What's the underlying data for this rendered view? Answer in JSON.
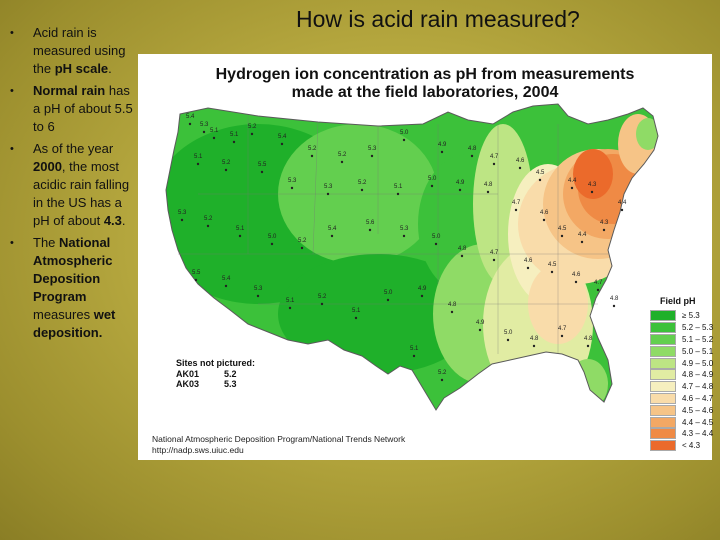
{
  "slide": {
    "title": "How is acid rain measured?",
    "bullets": [
      {
        "parts": [
          {
            "t": "Acid rain is measured using the ",
            "b": false
          },
          {
            "t": "pH scale",
            "b": true
          },
          {
            "t": ".",
            "b": false
          }
        ]
      },
      {
        "parts": [
          {
            "t": "Normal rain",
            "b": true
          },
          {
            "t": " has a pH of about 5.5 to 6",
            "b": false
          }
        ]
      },
      {
        "parts": [
          {
            "t": "As of the year ",
            "b": false
          },
          {
            "t": "2000",
            "b": true
          },
          {
            "t": ", the most acidic rain falling in the US has a pH of about ",
            "b": false
          },
          {
            "t": "4.3",
            "b": true
          },
          {
            "t": ".",
            "b": false
          }
        ]
      },
      {
        "parts": [
          {
            "t": "The ",
            "b": false
          },
          {
            "t": "National Atmospheric Deposition Program",
            "b": true
          },
          {
            "t": " measures ",
            "b": false
          },
          {
            "t": "wet deposition.",
            "b": true
          }
        ]
      }
    ]
  },
  "map": {
    "title_line1": "Hydrogen ion concentration as pH from measurements",
    "title_line2": "made at the field laboratories, 2004",
    "legend_title": "Field pH",
    "legend": [
      {
        "label": "≥ 5.3",
        "color": "#1fb02a"
      },
      {
        "label": "5.2 – 5.3",
        "color": "#3cc13a"
      },
      {
        "label": "5.1 – 5.2",
        "color": "#63cf4f"
      },
      {
        "label": "5.0 – 5.1",
        "color": "#8fdb66"
      },
      {
        "label": "4.9 – 5.0",
        "color": "#bde584"
      },
      {
        "label": "4.8 – 4.9",
        "color": "#e1eca3"
      },
      {
        "label": "4.7 – 4.8",
        "color": "#f6efbf"
      },
      {
        "label": "4.6 – 4.7",
        "color": "#f9dcaa"
      },
      {
        "label": "4.5 – 4.6",
        "color": "#f6c487"
      },
      {
        "label": "4.4 – 4.5",
        "color": "#f3a864"
      },
      {
        "label": "4.3 – 4.4",
        "color": "#ef8a45"
      },
      {
        "label": "< 4.3",
        "color": "#eb6a2b"
      }
    ],
    "sites_note": "Sites not pictured:",
    "sites": [
      {
        "id": "AK01",
        "value": "5.2"
      },
      {
        "id": "AK03",
        "value": "5.3"
      }
    ],
    "credit_line1": "National Atmospheric Deposition Program/National Trends Network",
    "credit_line2": "http://nadp.sws.uiuc.edu",
    "labels": [
      "5.4",
      "5.3",
      "5.1",
      "5.1",
      "5.2",
      "5.4",
      "5.2",
      "5.2",
      "5.3",
      "5.0",
      "4.9",
      "4.8",
      "4.7",
      "4.6",
      "4.5",
      "4.4",
      "4.3",
      "5.1",
      "5.2",
      "5.5",
      "5.3",
      "5.3",
      "5.2",
      "5.1",
      "5.0",
      "4.9",
      "4.8",
      "4.7",
      "4.6",
      "4.5",
      "4.4",
      "4.3",
      "4.4",
      "5.3",
      "5.2",
      "5.1",
      "5.0",
      "5.2",
      "5.4",
      "5.6",
      "5.3",
      "5.0",
      "4.8",
      "4.7",
      "4.6",
      "4.5",
      "4.6",
      "4.7",
      "4.8",
      "5.5",
      "5.4",
      "5.3",
      "5.1",
      "5.2",
      "5.1",
      "5.0",
      "4.9",
      "4.8",
      "4.9",
      "5.0",
      "4.8",
      "4.7",
      "4.8",
      "5.1",
      "5.2"
    ]
  }
}
